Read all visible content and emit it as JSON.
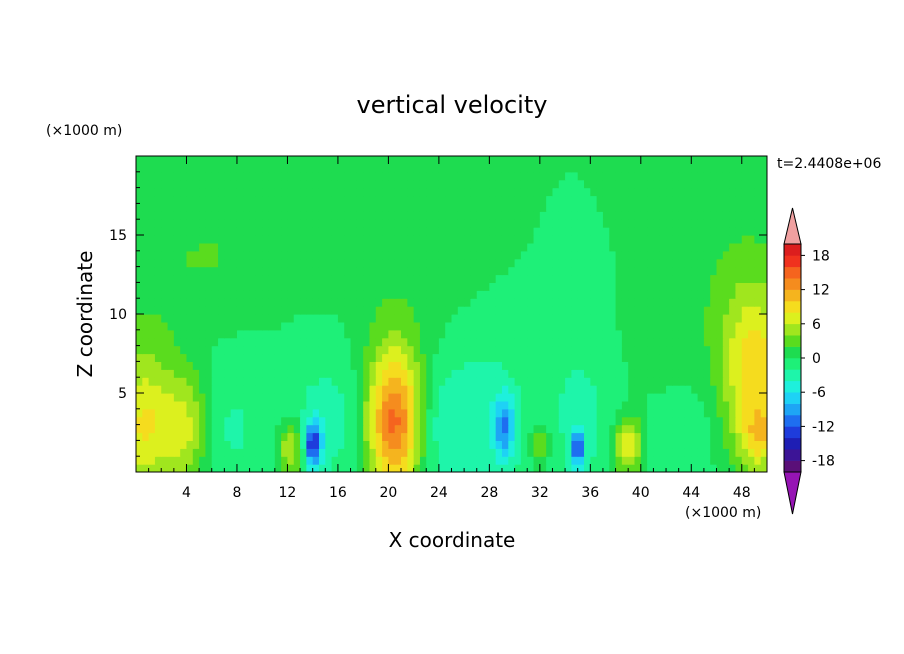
{
  "chart_data": {
    "type": "heatmap",
    "title": "vertical velocity",
    "xlabel": "X coordinate",
    "ylabel": "Z coordinate",
    "x_unit": "(×1000 m)",
    "y_unit": "(×1000 m)",
    "time_label": "t=2.4408e+06",
    "xlim": [
      0,
      50
    ],
    "ylim": [
      0,
      20
    ],
    "x_ticks": [
      4,
      8,
      12,
      16,
      20,
      24,
      28,
      32,
      36,
      40,
      44,
      48
    ],
    "y_ticks": [
      5,
      10,
      15
    ],
    "colorbar": {
      "min": -20,
      "max": 20,
      "step": 2,
      "tick_values": [
        18,
        12,
        6,
        0,
        -6,
        -12,
        -18
      ],
      "colors": [
        "#5a0f78",
        "#3c1496",
        "#1e1eb4",
        "#1e3cdc",
        "#1e6ef0",
        "#1ea5f5",
        "#1ed2f5",
        "#1ef0dc",
        "#1ef5aa",
        "#1ef078",
        "#1edc50",
        "#5adc1e",
        "#a0e61e",
        "#dcf01e",
        "#f5dc1e",
        "#f5b41e",
        "#f58c1e",
        "#f5641e",
        "#f0321e",
        "#dc1e1e"
      ],
      "over_color": "#f0a0a0",
      "under_color": "#9614b4"
    },
    "features": [
      {
        "x": 0.6,
        "z": 3.0,
        "sx": 1.6,
        "sz": 3.2,
        "w": 8
      },
      {
        "x": 4.0,
        "z": 2.8,
        "sx": 1.3,
        "sz": 2.5,
        "w": 7
      },
      {
        "x": 7.0,
        "z": 3.0,
        "sx": 2.5,
        "sz": 3.5,
        "w": -2.5
      },
      {
        "x": 12.3,
        "z": 1.5,
        "sx": 0.8,
        "sz": 1.2,
        "w": 7
      },
      {
        "x": 14.0,
        "z": 1.8,
        "sx": 0.5,
        "sz": 1.0,
        "w": -13
      },
      {
        "x": 15.5,
        "z": 3.5,
        "sx": 2.5,
        "sz": 3.5,
        "w": -3
      },
      {
        "x": 20.5,
        "z": 3.2,
        "sx": 1.6,
        "sz": 3.2,
        "w": 15
      },
      {
        "x": 23.5,
        "z": 3.0,
        "sx": 1.5,
        "sz": 2.5,
        "w": -2.5
      },
      {
        "x": 27.0,
        "z": 3.2,
        "sx": 2.8,
        "sz": 4.0,
        "w": -3.5
      },
      {
        "x": 29.2,
        "z": 2.9,
        "sx": 0.6,
        "sz": 1.4,
        "w": -8
      },
      {
        "x": 32.0,
        "z": 1.8,
        "sx": 0.6,
        "sz": 1.0,
        "w": 5
      },
      {
        "x": 35.0,
        "z": 1.5,
        "sx": 0.4,
        "sz": 0.8,
        "w": -11
      },
      {
        "x": 35.5,
        "z": 4.0,
        "sx": 2.5,
        "sz": 4.5,
        "w": -2.5
      },
      {
        "x": 39.0,
        "z": 1.7,
        "sx": 0.8,
        "sz": 1.3,
        "w": 9
      },
      {
        "x": 43.5,
        "z": 3.0,
        "sx": 2.5,
        "sz": 3.0,
        "w": -2
      },
      {
        "x": 49.0,
        "z": 6.0,
        "sx": 1.8,
        "sz": 4.0,
        "w": 9
      },
      {
        "x": 49.5,
        "z": 2.2,
        "sx": 1.0,
        "sz": 1.2,
        "w": 5
      },
      {
        "x": 2.5,
        "z": 12.0,
        "sx": 4.0,
        "sz": 5.0,
        "w": 1.5
      },
      {
        "x": 8.0,
        "z": 14.0,
        "sx": 3.5,
        "sz": 2.5,
        "w": 1.3
      },
      {
        "x": 21.0,
        "z": 13.0,
        "sx": 4.0,
        "sz": 6.0,
        "w": 1.5
      },
      {
        "x": 47.0,
        "z": 12.0,
        "sx": 4.0,
        "sz": 6.0,
        "w": 1.5
      },
      {
        "x": 41.0,
        "z": 7.0,
        "sx": 3.0,
        "sz": 3.0,
        "w": 1.2
      }
    ]
  }
}
